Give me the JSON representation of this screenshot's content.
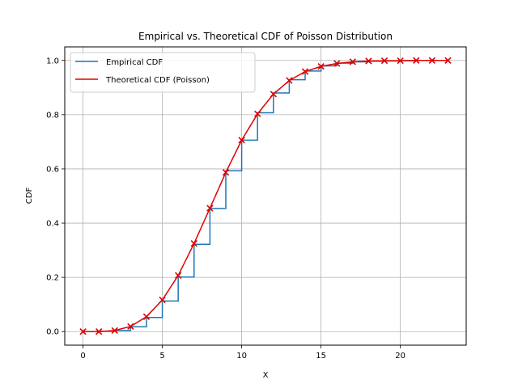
{
  "chart_data": {
    "type": "line",
    "title": "Empirical vs. Theoretical CDF of Poisson Distribution",
    "xlabel": "X",
    "ylabel": "CDF",
    "xlim": [
      -1.15,
      24.15
    ],
    "ylim": [
      -0.05,
      1.05
    ],
    "xticks": [
      0,
      5,
      10,
      15,
      20
    ],
    "yticks": [
      0.0,
      0.2,
      0.4,
      0.6,
      0.8,
      1.0
    ],
    "xtick_labels": [
      "0",
      "5",
      "10",
      "15",
      "20"
    ],
    "ytick_labels": [
      "0.0",
      "0.2",
      "0.4",
      "0.6",
      "0.8",
      "1.0"
    ],
    "grid": true,
    "legend_position": "top-left",
    "x": [
      0,
      1,
      2,
      3,
      4,
      5,
      6,
      7,
      8,
      9,
      10,
      11,
      12,
      13,
      14,
      15,
      16,
      17,
      18,
      19,
      20,
      21,
      22,
      23
    ],
    "series": [
      {
        "name": "Empirical CDF",
        "style": "step",
        "color": "#1f77b4",
        "values": [
          0.0,
          0.001,
          0.004,
          0.018,
          0.052,
          0.113,
          0.201,
          0.322,
          0.454,
          0.593,
          0.706,
          0.807,
          0.88,
          0.929,
          0.961,
          0.98,
          0.99,
          0.995,
          0.997,
          0.998,
          0.999,
          1.0,
          1.0,
          1.0
        ]
      },
      {
        "name": "Theoretical CDF (Poisson)",
        "style": "line-x-markers",
        "color": "#e00000",
        "values": [
          0.0,
          0.0,
          0.004,
          0.019,
          0.055,
          0.117,
          0.207,
          0.325,
          0.455,
          0.587,
          0.706,
          0.803,
          0.876,
          0.926,
          0.959,
          0.978,
          0.989,
          0.995,
          0.998,
          0.999,
          0.999,
          1.0,
          1.0,
          1.0
        ]
      }
    ]
  }
}
